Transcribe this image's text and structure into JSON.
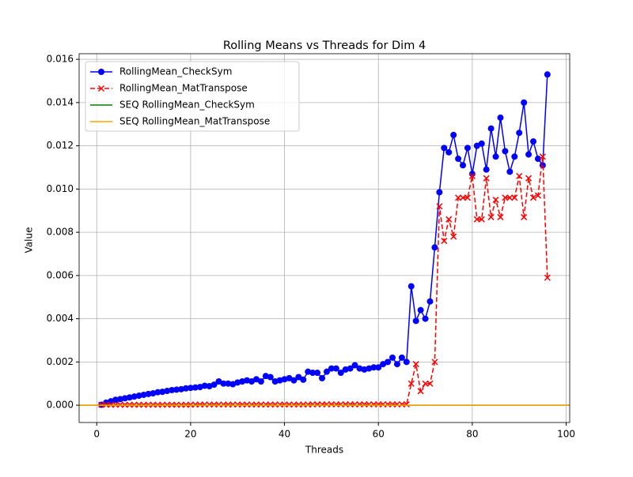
{
  "chart_data": {
    "type": "line",
    "title": "Rolling Means vs Threads for Dim 4",
    "x_label": "Threads",
    "y_label": "Value",
    "x": [
      1,
      2,
      3,
      4,
      5,
      6,
      7,
      8,
      9,
      10,
      11,
      12,
      13,
      14,
      15,
      16,
      17,
      18,
      19,
      20,
      21,
      22,
      23,
      24,
      25,
      26,
      27,
      28,
      29,
      30,
      31,
      32,
      33,
      34,
      35,
      36,
      37,
      38,
      39,
      40,
      41,
      42,
      43,
      44,
      45,
      46,
      47,
      48,
      49,
      50,
      51,
      52,
      53,
      54,
      55,
      56,
      57,
      58,
      59,
      60,
      61,
      62,
      63,
      64,
      65,
      66,
      67,
      68,
      69,
      70,
      71,
      72,
      73,
      74,
      75,
      76,
      77,
      78,
      79,
      80,
      81,
      82,
      83,
      84,
      85,
      86,
      87,
      88,
      89,
      90,
      91,
      92,
      93,
      94,
      95,
      96
    ],
    "series": [
      {
        "name": "RollingMean_CheckSym",
        "color": "#0000ff",
        "marker": "o",
        "linestyle": "solid",
        "values": [
          2e-05,
          0.00012,
          0.00018,
          0.00025,
          0.00028,
          0.00032,
          0.00036,
          0.0004,
          0.00044,
          0.00048,
          0.00052,
          0.00055,
          0.0006,
          0.00062,
          0.00066,
          0.0007,
          0.00072,
          0.00074,
          0.00078,
          0.0008,
          0.00082,
          0.00084,
          0.0009,
          0.00088,
          0.00095,
          0.0011,
          0.001,
          0.001,
          0.00097,
          0.00105,
          0.0011,
          0.00115,
          0.0011,
          0.0012,
          0.0011,
          0.00135,
          0.0013,
          0.0011,
          0.00115,
          0.0012,
          0.00125,
          0.00115,
          0.0013,
          0.00118,
          0.00155,
          0.0015,
          0.0015,
          0.00125,
          0.00155,
          0.0017,
          0.0017,
          0.0015,
          0.00165,
          0.0017,
          0.00185,
          0.0017,
          0.00165,
          0.0017,
          0.00175,
          0.00175,
          0.0019,
          0.002,
          0.0022,
          0.0019,
          0.0022,
          0.002,
          0.0055,
          0.0039,
          0.0044,
          0.004,
          0.0048,
          0.0073,
          0.00985,
          0.0119,
          0.0117,
          0.0125,
          0.0114,
          0.0111,
          0.0119,
          0.0107,
          0.012,
          0.0121,
          0.0109,
          0.0128,
          0.0115,
          0.0133,
          0.01175,
          0.0108,
          0.0115,
          0.0126,
          0.014,
          0.0116,
          0.0122,
          0.0114,
          0.0111,
          0.0153
        ]
      },
      {
        "name": "RollingMean_MatTranspose",
        "color": "#ff0000",
        "marker": "x",
        "linestyle": "dashed",
        "values": [
          2e-05,
          2e-05,
          2e-05,
          2e-05,
          2e-05,
          2e-05,
          2e-05,
          2e-05,
          2e-05,
          2e-05,
          2e-05,
          2e-05,
          2e-05,
          2e-05,
          2e-05,
          2e-05,
          2e-05,
          2e-05,
          2e-05,
          2e-05,
          3e-05,
          3e-05,
          3e-05,
          3e-05,
          3e-05,
          3e-05,
          3e-05,
          3e-05,
          3e-05,
          3e-05,
          3e-05,
          3e-05,
          3e-05,
          3e-05,
          3e-05,
          3e-05,
          3e-05,
          3e-05,
          3e-05,
          3e-05,
          3e-05,
          3e-05,
          3e-05,
          3e-05,
          3e-05,
          4e-05,
          4e-05,
          4e-05,
          4e-05,
          4e-05,
          4e-05,
          4e-05,
          4e-05,
          4e-05,
          4e-05,
          4e-05,
          4e-05,
          4e-05,
          4e-05,
          4e-05,
          4e-05,
          4e-05,
          4e-05,
          4e-05,
          4e-05,
          4e-05,
          0.001,
          0.0019,
          0.00065,
          0.001,
          0.001,
          0.002,
          0.0092,
          0.0076,
          0.0086,
          0.0078,
          0.0096,
          0.0096,
          0.0096,
          0.0106,
          0.0086,
          0.0086,
          0.0105,
          0.0087,
          0.0095,
          0.0087,
          0.0096,
          0.0096,
          0.0096,
          0.0106,
          0.0087,
          0.0105,
          0.0096,
          0.0097,
          0.0115,
          0.0059
        ]
      },
      {
        "name": "SEQ RollingMean_CheckSym",
        "color": "#008000",
        "hline": 0.0
      },
      {
        "name": "SEQ RollingMean_MatTranspose",
        "color": "#ffa500",
        "hline": 0.0
      }
    ],
    "xlim": [
      -3.75,
      100.75
    ],
    "xticks": [
      0,
      20,
      40,
      60,
      80,
      100
    ],
    "ylim": [
      -0.0008,
      0.01626
    ],
    "yticks": [
      {
        "value": 0,
        "label": "0.000"
      },
      {
        "value": 0.002,
        "label": "0.002"
      },
      {
        "value": 0.004,
        "label": "0.004"
      },
      {
        "value": 0.006,
        "label": "0.006"
      },
      {
        "value": 0.008,
        "label": "0.008"
      },
      {
        "value": 0.01,
        "label": "0.010"
      },
      {
        "value": 0.012,
        "label": "0.012"
      },
      {
        "value": 0.014,
        "label": "0.014"
      },
      {
        "value": 0.016,
        "label": "0.016"
      }
    ],
    "grid": true,
    "legend": "upper left"
  }
}
